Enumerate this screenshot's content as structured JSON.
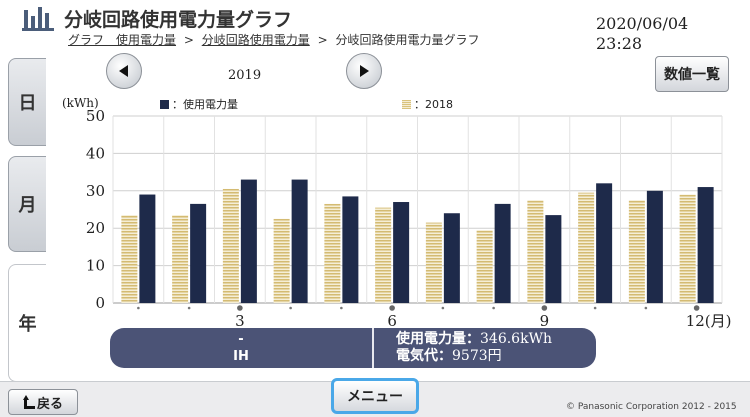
{
  "header": {
    "title": "分岐回路使用電力量グラフ",
    "datetime": "2020/06/04　23:28",
    "breadcrumb": [
      "グラフ　使用電力量",
      "分岐回路使用電力量",
      "分岐回路使用電力量グラフ"
    ],
    "breadcrumb_sep": ">"
  },
  "tabs": [
    {
      "label": "日",
      "active": false
    },
    {
      "label": "月",
      "active": false
    },
    {
      "label": "年",
      "active": true
    }
  ],
  "year_label": "2019",
  "numeric_list_button": "数値一覧",
  "legend": {
    "unit": "(kWh)",
    "current": "：使用電力量",
    "previous": "：2018"
  },
  "chart_data": {
    "type": "bar",
    "categories": [
      "1",
      "2",
      "3",
      "4",
      "5",
      "6",
      "7",
      "8",
      "9",
      "10",
      "11",
      "12"
    ],
    "x_tick_labels": {
      "3": "3",
      "6": "6",
      "9": "9",
      "12": "12(月)"
    },
    "series": [
      {
        "name": "使用電力量",
        "values": [
          29,
          26.5,
          33,
          33,
          28.5,
          27,
          24,
          26.5,
          23.5,
          32,
          30,
          31
        ]
      },
      {
        "name": "2018",
        "values": [
          23.5,
          23.5,
          30.5,
          22.5,
          26.5,
          25.5,
          21.5,
          19.5,
          27.5,
          29.5,
          27.5,
          29
        ]
      }
    ],
    "ylim": [
      0,
      50
    ],
    "yticks": [
      0,
      10,
      20,
      30,
      40,
      50
    ],
    "ylabel": "(kWh)",
    "grid": true,
    "colors": {
      "current": "#1e2a4a",
      "previous": "#d9c27c"
    }
  },
  "summary": {
    "dash": "-",
    "circuit": "IH",
    "usage_label": "使用電力量：",
    "usage_value": "346.6kWh",
    "cost_label": "電気代：",
    "cost_value": "9573円"
  },
  "footer": {
    "back_label": "戻る",
    "menu_label": "メニュー",
    "copyright": "© Panasonic Corporation 2012 - 2015"
  }
}
